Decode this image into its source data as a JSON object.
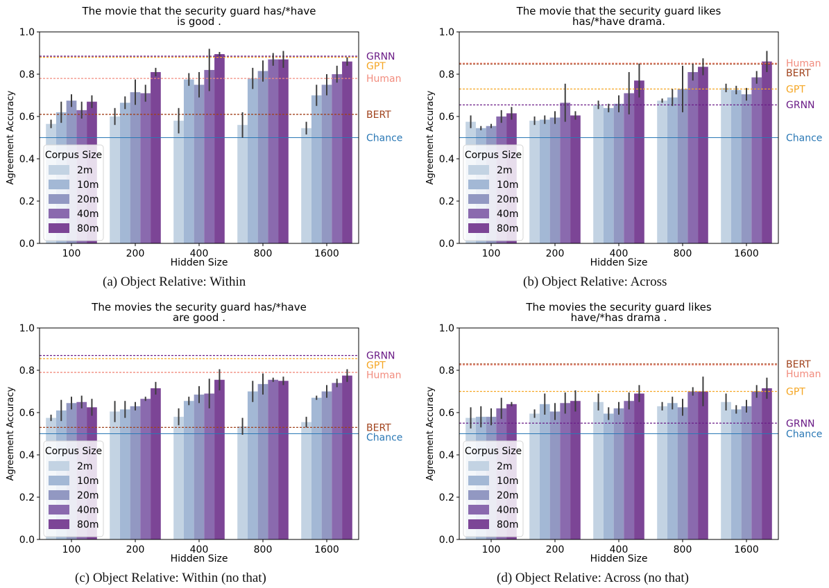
{
  "chart_data": [
    {
      "type": "bar",
      "title": [
        "The movie that the security guard has/*have",
        "is good ."
      ],
      "caption": "(a)  Object Relative: Within",
      "xlabel": "Hidden Size",
      "ylabel": "Agreement Accuracy",
      "ylim": [
        0,
        1.0
      ],
      "yticks": [
        "0.0",
        "0.2",
        "0.4",
        "0.6",
        "0.8",
        "1.0"
      ],
      "categories": [
        "100",
        "200",
        "400",
        "800",
        "1600"
      ],
      "legend": {
        "title": "Corpus Size",
        "position": "lower-left"
      },
      "series": [
        {
          "name": "2m",
          "color": "#c3d3e3",
          "values": [
            0.565,
            0.6,
            0.58,
            0.56,
            0.545
          ],
          "err": [
            0.02,
            0.04,
            0.06,
            0.06,
            0.03
          ]
        },
        {
          "name": "10m",
          "color": "#a3b8d5",
          "values": [
            0.62,
            0.665,
            0.775,
            0.78,
            0.7
          ],
          "err": [
            0.05,
            0.03,
            0.03,
            0.05,
            0.05
          ]
        },
        {
          "name": "20m",
          "color": "#9298c2",
          "values": [
            0.675,
            0.715,
            0.75,
            0.815,
            0.75
          ],
          "err": [
            0.03,
            0.06,
            0.06,
            0.05,
            0.05
          ]
        },
        {
          "name": "40m",
          "color": "#8a6aae",
          "values": [
            0.63,
            0.71,
            0.82,
            0.87,
            0.8
          ],
          "err": [
            0.04,
            0.04,
            0.1,
            0.03,
            0.04
          ]
        },
        {
          "name": "80m",
          "color": "#7c4596",
          "values": [
            0.67,
            0.81,
            0.895,
            0.87,
            0.86
          ],
          "err": [
            0.03,
            0.02,
            0.01,
            0.04,
            0.02
          ]
        }
      ],
      "reference_lines": [
        {
          "label": "GRNN",
          "value": 0.885,
          "color": "#6a1b86",
          "style": "dashed"
        },
        {
          "label": "GPT",
          "value": 0.88,
          "color": "#f5a623",
          "style": "dashed"
        },
        {
          "label": "Human",
          "value": 0.78,
          "color": "#f28c7e",
          "style": "dashed"
        },
        {
          "label": "BERT",
          "value": 0.61,
          "color": "#a0421c",
          "style": "dashed"
        },
        {
          "label": "Chance",
          "value": 0.5,
          "color": "#2a78b5",
          "style": "solid"
        }
      ]
    },
    {
      "type": "bar",
      "title": [
        "The movie that the security guard likes",
        "has/*have drama."
      ],
      "caption": "(b)  Object Relative: Across",
      "xlabel": "Hidden Size",
      "ylabel": "Agreement Accuracy",
      "ylim": [
        0,
        1.0
      ],
      "yticks": [
        "0.0",
        "0.2",
        "0.4",
        "0.6",
        "0.8",
        "1.0"
      ],
      "categories": [
        "100",
        "200",
        "400",
        "800",
        "1600"
      ],
      "legend": {
        "title": "Corpus Size",
        "position": "lower-left"
      },
      "series": [
        {
          "name": "2m",
          "color": "#c3d3e3",
          "values": [
            0.575,
            0.58,
            0.655,
            0.675,
            0.735
          ],
          "err": [
            0.03,
            0.02,
            0.02,
            0.01,
            0.02
          ]
        },
        {
          "name": "10m",
          "color": "#a3b8d5",
          "values": [
            0.545,
            0.585,
            0.64,
            0.69,
            0.725
          ],
          "err": [
            0.01,
            0.02,
            0.02,
            0.04,
            0.02
          ]
        },
        {
          "name": "20m",
          "color": "#9298c2",
          "values": [
            0.555,
            0.595,
            0.66,
            0.73,
            0.705
          ],
          "err": [
            0.01,
            0.03,
            0.04,
            0.11,
            0.03
          ]
        },
        {
          "name": "40m",
          "color": "#8a6aae",
          "values": [
            0.6,
            0.665,
            0.71,
            0.81,
            0.785
          ],
          "err": [
            0.03,
            0.09,
            0.1,
            0.04,
            0.03
          ]
        },
        {
          "name": "80m",
          "color": "#7c4596",
          "values": [
            0.615,
            0.605,
            0.77,
            0.835,
            0.86
          ],
          "err": [
            0.03,
            0.02,
            0.08,
            0.04,
            0.05
          ]
        }
      ],
      "reference_lines": [
        {
          "label": "Human",
          "value": 0.852,
          "color": "#f28c7e",
          "style": "dashed"
        },
        {
          "label": "BERT",
          "value": 0.848,
          "color": "#a0421c",
          "style": "dashed"
        },
        {
          "label": "GPT",
          "value": 0.73,
          "color": "#f5a623",
          "style": "dashed"
        },
        {
          "label": "GRNN",
          "value": 0.655,
          "color": "#6a1b86",
          "style": "dashed"
        },
        {
          "label": "Chance",
          "value": 0.5,
          "color": "#2a78b5",
          "style": "solid"
        }
      ]
    },
    {
      "type": "bar",
      "title": [
        "The movies the security guard has/*have",
        "are good ."
      ],
      "caption": "(c)  Object Relative: Within (no that)",
      "xlabel": "Hidden Size",
      "ylabel": "Agreement Accuracy",
      "ylim": [
        0,
        1.0
      ],
      "yticks": [
        "0.0",
        "0.2",
        "0.4",
        "0.6",
        "0.8",
        "1.0"
      ],
      "categories": [
        "100",
        "200",
        "400",
        "800",
        "1600"
      ],
      "legend": {
        "title": "Corpus Size",
        "position": "lower-left"
      },
      "series": [
        {
          "name": "2m",
          "color": "#c3d3e3",
          "values": [
            0.575,
            0.605,
            0.58,
            0.535,
            0.555
          ],
          "err": [
            0.015,
            0.05,
            0.04,
            0.04,
            0.025
          ]
        },
        {
          "name": "10m",
          "color": "#a3b8d5",
          "values": [
            0.61,
            0.615,
            0.655,
            0.7,
            0.67
          ],
          "err": [
            0.05,
            0.04,
            0.02,
            0.05,
            0.01
          ]
        },
        {
          "name": "20m",
          "color": "#9298c2",
          "values": [
            0.645,
            0.63,
            0.685,
            0.735,
            0.7
          ],
          "err": [
            0.03,
            0.02,
            0.04,
            0.05,
            0.03
          ]
        },
        {
          "name": "40m",
          "color": "#8a6aae",
          "values": [
            0.65,
            0.665,
            0.69,
            0.755,
            0.74
          ],
          "err": [
            0.03,
            0.01,
            0.07,
            0.01,
            0.02
          ]
        },
        {
          "name": "80m",
          "color": "#7c4596",
          "values": [
            0.625,
            0.715,
            0.755,
            0.75,
            0.775
          ],
          "err": [
            0.04,
            0.03,
            0.05,
            0.02,
            0.03
          ]
        }
      ],
      "reference_lines": [
        {
          "label": "GRNN",
          "value": 0.87,
          "color": "#6a1b86",
          "style": "dashed"
        },
        {
          "label": "GPT",
          "value": 0.855,
          "color": "#f5a623",
          "style": "dashed"
        },
        {
          "label": "Human",
          "value": 0.79,
          "color": "#f28c7e",
          "style": "dashed"
        },
        {
          "label": "BERT",
          "value": 0.53,
          "color": "#a0421c",
          "style": "dashed"
        },
        {
          "label": "Chance",
          "value": 0.5,
          "color": "#2a78b5",
          "style": "solid"
        }
      ]
    },
    {
      "type": "bar",
      "title": [
        "The movies the security guard likes",
        "have/*has drama ."
      ],
      "caption": "(d)  Object Relative: Across (no that)",
      "xlabel": "Hidden Size",
      "ylabel": "Agreement Accuracy",
      "ylim": [
        0,
        1.0
      ],
      "yticks": [
        "0.0",
        "0.2",
        "0.4",
        "0.6",
        "0.8",
        "1.0"
      ],
      "categories": [
        "100",
        "200",
        "400",
        "800",
        "1600"
      ],
      "legend": {
        "title": "Corpus Size",
        "position": "lower-left"
      },
      "series": [
        {
          "name": "2m",
          "color": "#c3d3e3",
          "values": [
            0.575,
            0.595,
            0.65,
            0.63,
            0.65
          ],
          "err": [
            0.05,
            0.02,
            0.04,
            0.02,
            0.04
          ]
        },
        {
          "name": "10m",
          "color": "#a3b8d5",
          "values": [
            0.58,
            0.64,
            0.595,
            0.645,
            0.615
          ],
          "err": [
            0.05,
            0.05,
            0.03,
            0.03,
            0.02
          ]
        },
        {
          "name": "20m",
          "color": "#9298c2",
          "values": [
            0.58,
            0.605,
            0.62,
            0.625,
            0.63
          ],
          "err": [
            0.04,
            0.04,
            0.03,
            0.04,
            0.03
          ]
        },
        {
          "name": "40m",
          "color": "#8a6aae",
          "values": [
            0.62,
            0.645,
            0.655,
            0.7,
            0.7
          ],
          "err": [
            0.05,
            0.05,
            0.04,
            0.02,
            0.03
          ]
        },
        {
          "name": "80m",
          "color": "#7c4596",
          "values": [
            0.64,
            0.655,
            0.69,
            0.7,
            0.715
          ],
          "err": [
            0.01,
            0.05,
            0.04,
            0.07,
            0.05
          ]
        }
      ],
      "reference_lines": [
        {
          "label": "BERT",
          "value": 0.83,
          "color": "#a0421c",
          "style": "dashed"
        },
        {
          "label": "Human",
          "value": 0.825,
          "color": "#f28c7e",
          "style": "dashed"
        },
        {
          "label": "GPT",
          "value": 0.7,
          "color": "#f5a623",
          "style": "dashed"
        },
        {
          "label": "GRNN",
          "value": 0.55,
          "color": "#6a1b86",
          "style": "dashed"
        },
        {
          "label": "Chance",
          "value": 0.5,
          "color": "#2a78b5",
          "style": "solid"
        }
      ]
    }
  ]
}
